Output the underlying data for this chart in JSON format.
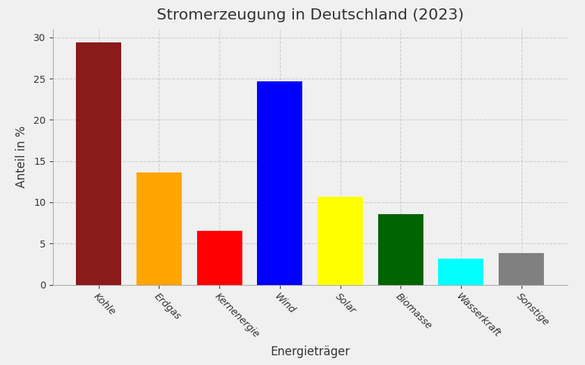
{
  "title": "Stromerzeugung in Deutschland (2023)",
  "xlabel": "Energieträger",
  "ylabel": "Anteil in %",
  "categories": [
    "Kohle",
    "Erdgas",
    "Kernenergie",
    "Wind",
    "Solar",
    "Biomasse",
    "Wasserkraft",
    "Sonstige"
  ],
  "values": [
    29.4,
    13.6,
    6.5,
    24.7,
    10.7,
    8.6,
    3.2,
    3.8
  ],
  "colors": [
    "#8B1A1A",
    "#FFA500",
    "#FF0000",
    "#0000FF",
    "#FFFF00",
    "#006400",
    "#00FFFF",
    "#808080"
  ],
  "ylim": [
    0,
    31
  ],
  "yticks": [
    0,
    5,
    10,
    15,
    20,
    25,
    30
  ],
  "grid_color": "#CCCCCC",
  "grid_linestyle": "--",
  "background_color": "#F0F0F0",
  "axes_bg_color": "#F0F0F0",
  "title_fontsize": 16,
  "label_fontsize": 12,
  "tick_fontsize": 10,
  "bar_width": 0.75
}
